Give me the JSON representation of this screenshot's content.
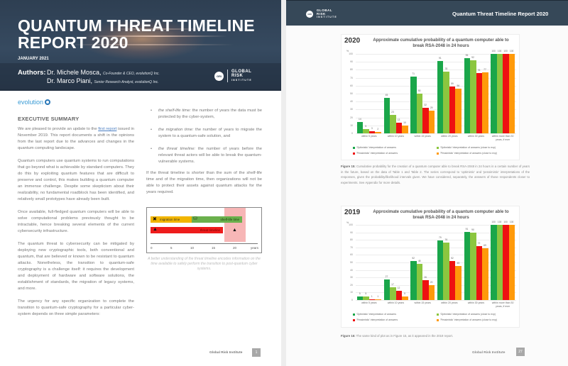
{
  "left_page": {
    "cover": {
      "title_line1": "QUANTUM THREAT TIMELINE",
      "title_line2": "REPORT 2020",
      "date": "JANUARY 2021",
      "authors_label": "Authors:",
      "authors": [
        {
          "name": "Dr. Michele Mosca,",
          "role": "Co-Founder & CEO, evolutionQ Inc."
        },
        {
          "name": "Dr. Marco Piani,",
          "role": "Senior Research Analyst,  evolutionQ Inc."
        }
      ],
      "gri_logo": {
        "badge": "GRI",
        "line1": "GLOBAL",
        "line2": "RISK",
        "line3": "INSTITUTE"
      }
    },
    "evolution_logo": "evolution",
    "section_title": "EXECUTIVE SUMMARY",
    "paragraphs": {
      "p1_before_link": "We are pleased to provide an update to the ",
      "p1_link": "first report",
      "p1_after_link": " issued in November 2019. This report documents a shift in the opinions from the last report due to the advances and changes in the quantum computing landscape.",
      "p2": "Quantum computers use quantum systems to run computations that go beyond what is achievable by standard computers. They do this by exploiting quantum features that are difficult to preserve and control, this makes building a quantum computer an immense challenge. Despite some skepticism about their realizability, no fundamental roadblock has been identified, and relatively small prototypes have already been built.",
      "p3": "Once available, full-fledged quantum computers will be able to solve computational problems previously thought to be intractable, hence breaking several elements of the current cybersecurity infrastructure.",
      "p4": "The quantum threat to cybersecurity can be mitigated by deploying new cryptographic tools, both conventional and quantum, that are believed or known to be resistant to quantum attacks. Nonetheless, the transition to quantum-safe cryptography is a challenge itself: it requires the development and deployment of hardware and software solutions, the establishment of standards, the migration of legacy systems, and more.",
      "p5": "The urgency for any specific organization to complete the transition to quantum-safe cryptography for a particular cyber-system depends on three simple parameters:"
    },
    "bullets": [
      {
        "term": "the shelf-life time:",
        "text": " the number of years the data must be protected by the cyber-system,"
      },
      {
        "term": "the migration time:",
        "text": " the number of years to migrate the system to a quantum-safe solution, and"
      },
      {
        "term": "the threat timeline:",
        "text": " the number of years before the relevant threat actors will be able to break the quantum-vulnerable systems."
      }
    ],
    "after_bullets": "If the threat timeline is shorter than the sum of the shelf-life time and of the migration time, then organizations will not be able to protect their assets against quantum attacks for the years required.",
    "timeline_figure": {
      "migration_label": "migration time",
      "shelf_label": "shelf-life time",
      "threat_label": "threat timeline",
      "ticks": [
        "0",
        "5",
        "10",
        "15",
        "20",
        "years"
      ]
    },
    "figure_caption": "A better understanding of the threat timeline encodes information on the time available to safely perform the transition to post-quantum cyber systems.",
    "footer": {
      "org": "Global Risk Institute",
      "page": "1"
    }
  },
  "right_page": {
    "header": {
      "gri_logo": {
        "badge": "GRI",
        "line1": "GLOBAL",
        "line2": "RISK",
        "line3": "INSTITUTE"
      },
      "title": "Quantum Threat Timeline Report 2020"
    },
    "figure15_caption_label": "Figure 15:",
    "figure15_caption": " Cumulative probability for the creation of a quantum computer able to break RSA-2048 in 24 hours in a certain number of years in the future, based on the data of Table 1 and Table 2. The series correspond to 'optimistic' and 'pessimistic' interpretations of the responses, given the probability/likelihood intervals given. We have considered, separately, the answers of those respondents closer to experiments. See Appendix for more details.",
    "figure16_caption_label": "Figure 16:",
    "figure16_caption": " The same kind of plot as in Figure 15, as it appeared in the 2019 report.",
    "footer": {
      "org": "Global Risk Institute",
      "page": "27"
    }
  },
  "chart_data": [
    {
      "type": "bar",
      "year_label": "2020",
      "title": "Approximate cumulative probability of a quantum computer able to break RSA-2048 in 24 hours",
      "ylabel": "%",
      "ylim": [
        0,
        100
      ],
      "yticks": [
        "0",
        "10",
        "20",
        "30",
        "40",
        "50",
        "60",
        "70",
        "80",
        "90",
        "100"
      ],
      "categories": [
        "within 5 years",
        "within 10 years",
        "within 15 years",
        "within 20 years",
        "within 30 years",
        "within more than 30 years, if ever"
      ],
      "series": [
        {
          "name": "'Optimistic' interpretation of answers",
          "color": "#1aa64a",
          "values": [
            14,
            45,
            71,
            91,
            95,
            100
          ]
        },
        {
          "name": "'Optimistic' interpretation of answers (close to exp)",
          "color": "#8cc63f",
          "values": [
            5,
            23,
            50,
            78,
            92,
            100
          ]
        },
        {
          "name": "'Pessimistic' interpretation of answers",
          "color": "#ee1111",
          "values": [
            3,
            13,
            32,
            59,
            76,
            100
          ]
        },
        {
          "name": "'Pessimistic' interpretation of answers (close to exp)",
          "color": "#ff9a0a",
          "values": [
            2,
            10,
            29,
            56,
            77,
            100
          ]
        }
      ],
      "grid": true,
      "legend_position": "bottom"
    },
    {
      "type": "bar",
      "year_label": "2019",
      "title": "Approximate cumulative probability of a quantum computer able to break RSA-2048 in 24 hours",
      "ylabel": "%",
      "ylim": [
        0,
        100
      ],
      "yticks": [
        "0",
        "10",
        "20",
        "30",
        "40",
        "50",
        "60",
        "70",
        "80",
        "90",
        "100"
      ],
      "categories": [
        "within 5 years",
        "within 10 years",
        "within 15 years",
        "within 20 years",
        "within 30 years",
        "within more than 30 years, if ever"
      ],
      "series": [
        {
          "name": "'Optimistic' interpretation of answers",
          "color": "#1aa64a",
          "values": [
            5,
            27,
            52,
            79,
            91,
            100
          ]
        },
        {
          "name": "'Optimistic' interpretation of answers (close to exp)",
          "color": "#8cc63f",
          "values": [
            5,
            17,
            48,
            76,
            90,
            100
          ]
        },
        {
          "name": "'Pessimistic' interpretation of answers",
          "color": "#ee1111",
          "values": [
            1,
            12,
            26,
            52,
            72,
            100
          ]
        },
        {
          "name": "'Pessimistic' interpretation of answers (close to exp)",
          "color": "#ff9a0a",
          "values": [
            1,
            5,
            20,
            45,
            69,
            100
          ]
        }
      ],
      "grid": true,
      "legend_position": "bottom"
    }
  ]
}
